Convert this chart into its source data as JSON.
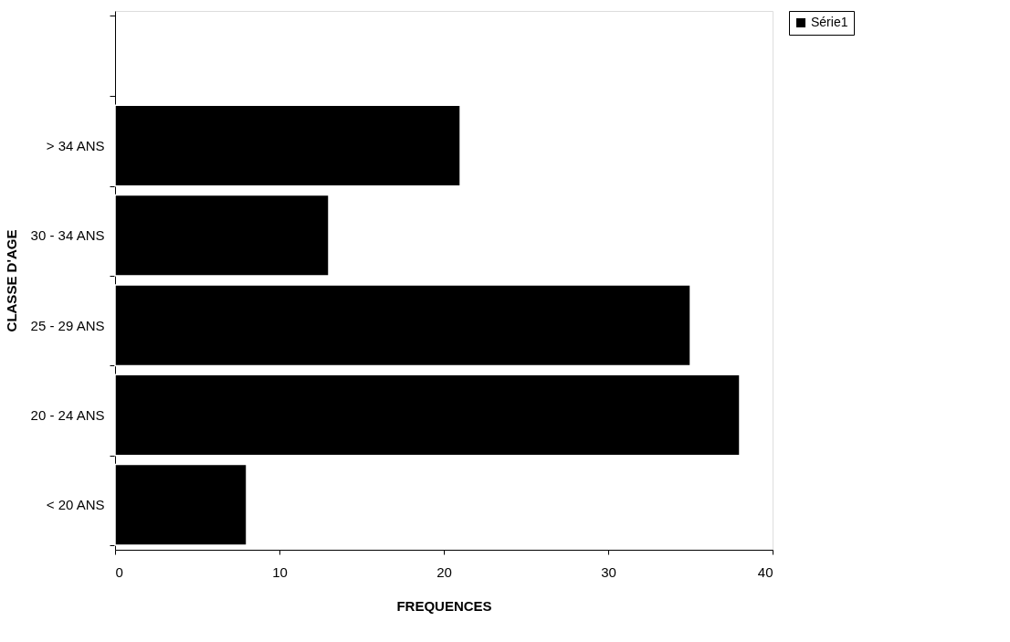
{
  "chart_data": {
    "type": "bar",
    "orientation": "horizontal",
    "xlabel": "FREQUENCES",
    "ylabel": "CLASSE D'AGE",
    "categories": [
      null,
      "> 34 ANS",
      "30 - 34 ANS",
      "25 - 29 ANS",
      "20 - 24 ANS",
      "< 20 ANS"
    ],
    "series": [
      {
        "name": "Série1",
        "color": "#000000",
        "values": [
          null,
          21,
          13,
          35,
          38,
          8
        ]
      }
    ],
    "xlim": [
      0,
      40
    ],
    "xticks": [
      0,
      10,
      20,
      30,
      40
    ],
    "grid": false,
    "legend": "right"
  }
}
